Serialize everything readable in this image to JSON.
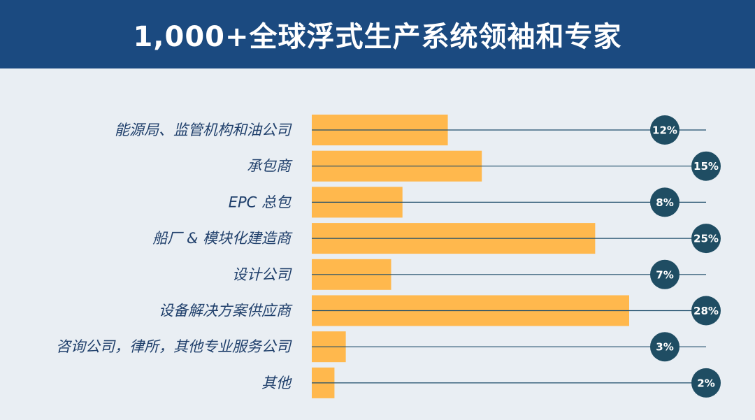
{
  "header": {
    "title": "1,000+全球浮式生产系统领袖和专家"
  },
  "colors": {
    "header_bg": "#1b4a80",
    "background": "#e9eef3",
    "bar": "#ffb84d",
    "line": "#1f4d6b",
    "badge": "#1f4d63",
    "label": "#1f3f6b"
  },
  "chart_data": {
    "type": "bar",
    "orientation": "horizontal",
    "title": "1,000+全球浮式生产系统领袖和专家",
    "categories": [
      "能源局、监管机构和油公司",
      "承包商",
      "EPC 总包",
      "船厂 & 模块化建造商",
      "设计公司",
      "设备解决方案供应商",
      "咨询公司，律所，其他专业服务公司",
      "其他"
    ],
    "values": [
      12,
      15,
      8,
      25,
      7,
      28,
      3,
      2
    ],
    "value_labels": [
      "12%",
      "15%",
      "8%",
      "25%",
      "7%",
      "28%",
      "3%",
      "2%"
    ],
    "unit": "%",
    "xlim": [
      0,
      28
    ]
  }
}
